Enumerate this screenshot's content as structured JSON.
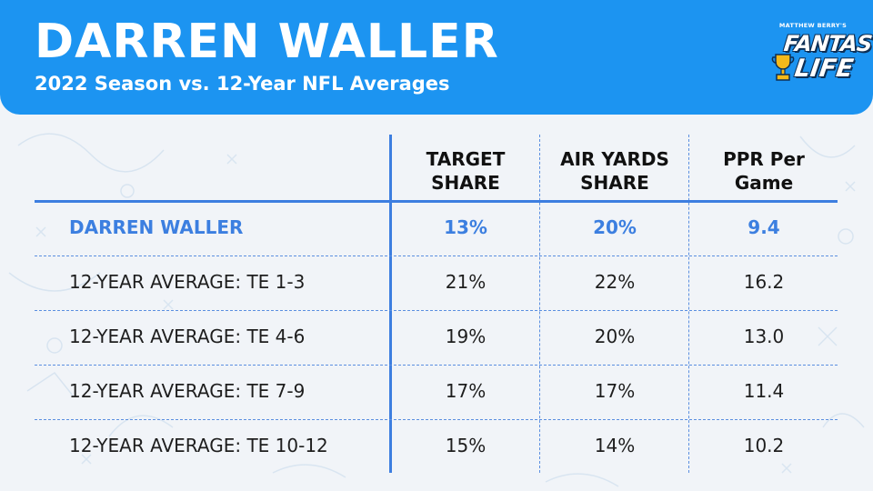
{
  "header": {
    "title": "DARREN WALLER",
    "subtitle": "2022 Season vs. 12-Year NFL Averages"
  },
  "logo": {
    "byline": "MATTHEW BERRY'S",
    "word1": "FANTASY",
    "word2": "LIFE"
  },
  "colors": {
    "header_bg": "#1c94f1",
    "accent_blue": "#3c7fe0",
    "text": "#1e1e1e",
    "background": "#f1f4f8"
  },
  "chart_data": {
    "type": "table",
    "columns": [
      "TARGET\nSHARE",
      "AIR YARDS\nSHARE",
      "PPR Per\nGame"
    ],
    "rows": [
      {
        "label": "DARREN WALLER",
        "values": [
          "13%",
          "20%",
          "9.4"
        ],
        "highlight": true
      },
      {
        "label": "12-YEAR AVERAGE: TE 1-3",
        "values": [
          "21%",
          "22%",
          "16.2"
        ]
      },
      {
        "label": "12-YEAR AVERAGE: TE 4-6",
        "values": [
          "19%",
          "20%",
          "13.0"
        ]
      },
      {
        "label": "12-YEAR AVERAGE: TE 7-9",
        "values": [
          "17%",
          "17%",
          "11.4"
        ]
      },
      {
        "label": "12-YEAR AVERAGE: TE 10-12",
        "values": [
          "15%",
          "14%",
          "10.2"
        ]
      }
    ]
  }
}
